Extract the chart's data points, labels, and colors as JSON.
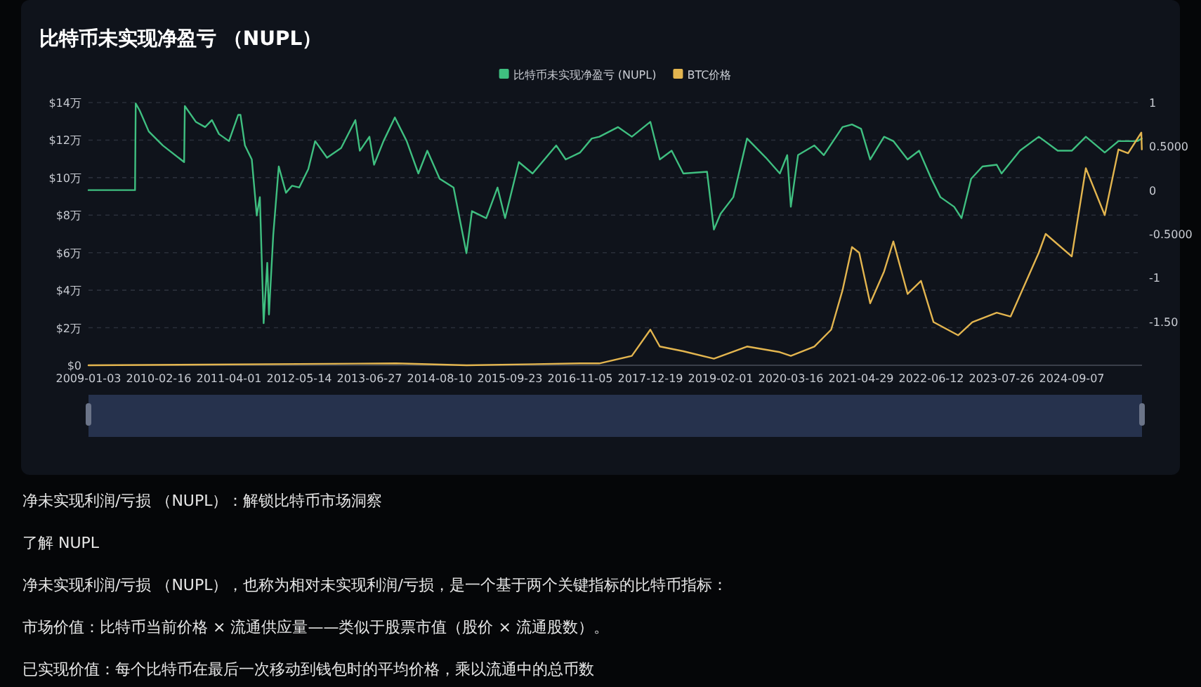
{
  "chart_data": {
    "type": "line",
    "title": "比特币未实现净盈亏 （NUPL）",
    "xlim": [
      "2009-01-03",
      "2025-10-21"
    ],
    "xticks": [
      "2009-01-03",
      "2010-02-16",
      "2011-04-01",
      "2012-05-14",
      "2013-06-27",
      "2014-08-10",
      "2015-09-23",
      "2016-11-05",
      "2017-12-19",
      "2019-02-01",
      "2020-03-16",
      "2021-04-29",
      "2022-06-12",
      "2023-07-26",
      "2024-09-07"
    ],
    "ylim": [
      0,
      14
    ],
    "yticks": [
      {
        "value": 0,
        "label": "$0"
      },
      {
        "value": 2,
        "label": "$2万"
      },
      {
        "value": 4,
        "label": "$4万"
      },
      {
        "value": 6,
        "label": "$6万"
      },
      {
        "value": 8,
        "label": "$8万"
      },
      {
        "value": 10,
        "label": "$10万"
      },
      {
        "value": 12,
        "label": "$12万"
      },
      {
        "value": 14,
        "label": "$14万"
      }
    ],
    "y2lim": [
      -2,
      1
    ],
    "y2ticks": [
      1,
      {
        "value": 0.5,
        "label": "0.5000"
      },
      0,
      {
        "value": -0.5,
        "label": "-0.5000"
      },
      -1,
      {
        "value": -1.5,
        "label": "-1.50"
      }
    ],
    "grid": "y",
    "legend": "top",
    "series": [
      {
        "name": "比特币未实现净盈亏 (NUPL)",
        "color": "#3fbf80",
        "axis": "y2",
        "x": [
          "2009-01-03",
          "2009-10-01",
          "2009-10-05",
          "2009-10-28",
          "2009-12-20",
          "2010-03-12",
          "2010-07-14",
          "2010-07-18",
          "2010-09-20",
          "2010-11-13",
          "2010-12-23",
          "2011-02-02",
          "2011-04-01",
          "2011-05-25",
          "2011-06-07",
          "2011-07-03",
          "2011-08-12",
          "2011-09-10",
          "2011-09-28",
          "2011-10-20",
          "2011-11-10",
          "2011-11-20",
          "2011-12-15",
          "2012-01-16",
          "2012-02-27",
          "2012-04-02",
          "2012-05-14",
          "2012-07-06",
          "2012-08-15",
          "2012-10-23",
          "2013-01-13",
          "2013-04-06",
          "2013-05-02",
          "2013-06-27",
          "2013-07-24",
          "2013-09-17",
          "2013-11-22",
          "2014-01-30",
          "2014-04-08",
          "2014-05-30",
          "2014-08-10",
          "2014-10-30",
          "2015-01-13",
          "2015-02-14",
          "2015-05-08",
          "2015-07-13",
          "2015-08-26",
          "2015-11-14",
          "2016-02-02",
          "2016-06-19",
          "2016-08-13",
          "2016-11-05",
          "2017-01-12",
          "2017-02-25",
          "2017-06-14",
          "2017-09-02",
          "2017-12-19",
          "2018-02-12",
          "2018-04-22",
          "2018-06-29",
          "2018-11-14",
          "2018-12-24",
          "2019-02-01",
          "2019-04-16",
          "2019-07-05",
          "2019-10-23",
          "2020-01-12",
          "2020-02-24",
          "2020-03-16",
          "2020-04-27",
          "2020-07-31",
          "2020-09-24",
          "2021-01-11",
          "2021-03-07",
          "2021-04-29",
          "2021-06-21",
          "2021-09-10",
          "2021-11-03",
          "2022-01-25",
          "2022-04-02",
          "2022-06-12",
          "2022-08-04",
          "2022-10-23",
          "2022-12-05",
          "2023-01-30",
          "2023-04-06",
          "2023-06-28",
          "2023-07-26",
          "2023-11-10",
          "2024-02-28",
          "2024-06-17",
          "2024-09-07",
          "2024-11-28",
          "2025-03-18",
          "2025-06-06",
          "2025-09-24",
          "2025-10-20"
        ],
        "values": [
          0,
          0,
          0.99,
          0.91,
          0.67,
          0.51,
          0.32,
          0.96,
          0.78,
          0.72,
          0.8,
          0.64,
          0.56,
          0.86,
          0.86,
          0.51,
          0.35,
          -0.29,
          -0.08,
          -1.52,
          -0.83,
          -1.42,
          -0.51,
          0.27,
          -0.03,
          0.05,
          0.03,
          0.24,
          0.56,
          0.37,
          0.48,
          0.8,
          0.45,
          0.61,
          0.29,
          0.56,
          0.83,
          0.56,
          0.19,
          0.45,
          0.13,
          0.03,
          -0.72,
          -0.24,
          -0.32,
          0.03,
          -0.32,
          0.32,
          0.19,
          0.51,
          0.35,
          0.43,
          0.59,
          0.61,
          0.72,
          0.61,
          0.78,
          0.35,
          0.45,
          0.19,
          0.21,
          -0.45,
          -0.27,
          -0.08,
          0.59,
          0.37,
          0.19,
          0.4,
          -0.19,
          0.4,
          0.51,
          0.4,
          0.72,
          0.75,
          0.7,
          0.35,
          0.61,
          0.56,
          0.35,
          0.45,
          0.13,
          -0.08,
          -0.19,
          -0.32,
          0.13,
          0.27,
          0.29,
          0.19,
          0.45,
          0.61,
          0.45,
          0.45,
          0.61,
          0.43,
          0.56,
          0.56,
          0.59
        ]
      },
      {
        "name": "BTC价格",
        "color": "#e3b54f",
        "x": [
          "2009-01-03",
          "2013-11-30",
          "2015-01-14",
          "2016-11-05",
          "2017-02-25",
          "2017-09-02",
          "2017-12-19",
          "2018-02-12",
          "2018-06-29",
          "2018-12-24",
          "2019-07-05",
          "2020-01-12",
          "2020-03-16",
          "2020-07-31",
          "2020-11-06",
          "2021-01-11",
          "2021-03-07",
          "2021-04-18",
          "2021-06-21",
          "2021-09-10",
          "2021-11-03",
          "2022-01-25",
          "2022-04-13",
          "2022-06-25",
          "2022-11-15",
          "2023-02-06",
          "2023-06-28",
          "2023-09-17",
          "2024-02-28",
          "2024-04-08",
          "2024-09-07",
          "2024-11-28",
          "2025-03-18",
          "2025-06-06",
          "2025-08-01",
          "2025-10-17",
          "2025-10-20"
        ],
        "values": [
          0,
          0.1,
          0,
          0.1,
          0.1,
          0.5,
          1.9,
          1.0,
          0.75,
          0.35,
          1.0,
          0.7,
          0.5,
          1.0,
          1.9,
          4.0,
          6.3,
          6.0,
          3.3,
          5.0,
          6.6,
          3.8,
          4.5,
          2.3,
          1.6,
          2.3,
          2.8,
          2.6,
          6.0,
          7.0,
          5.8,
          10.5,
          8.0,
          11.5,
          11.3,
          12.4,
          11.5
        ]
      }
    ],
    "annotations": [
      "净未实现利润/亏损 （NUPL）：解锁比特币市场洞察",
      "了解 NUPL",
      "净未实现利润/亏损 （NUPL），也称为相对未实现利润/亏损，是一个基于两个关键指标的比特币指标：",
      "市场价值：比特币当前价格 × 流通供应量——类似于股票市值（股价 × 流通股数）。",
      "已实现价值：每个比特币在最后一次移动到钱包时的平均价格，乘以流通中的总币数"
    ]
  }
}
